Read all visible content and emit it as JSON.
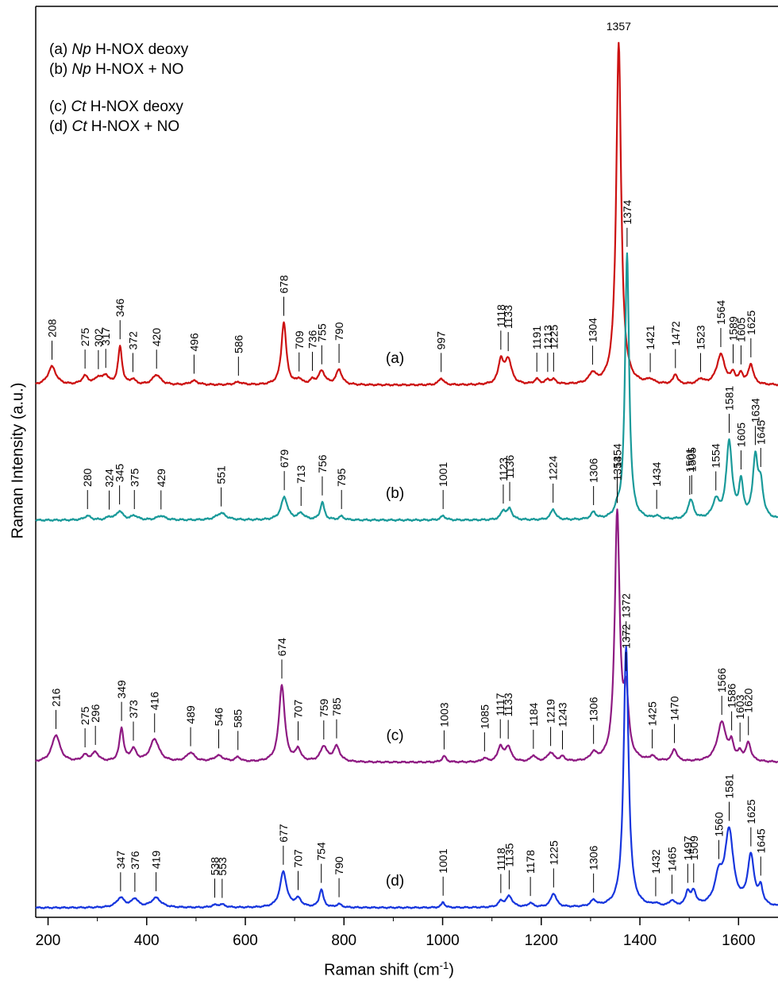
{
  "chart_data": {
    "type": "line",
    "xlabel": "Raman shift (cm",
    "xlabel_sup": "-1",
    "xlabel_end": ")",
    "ylabel": "Raman Intensity (a.u.)",
    "xlim": [
      175,
      1680
    ],
    "x_ticks": [
      200,
      400,
      600,
      800,
      1000,
      1200,
      1400,
      1600
    ],
    "legend": [
      {
        "id": "a",
        "italic": "Np",
        "rest": "H-NOX deoxy"
      },
      {
        "id": "b",
        "italic": "Np",
        "rest": "H-NOX + NO"
      },
      {
        "id": "c",
        "italic": "Ct",
        "rest": "H-NOX deoxy"
      },
      {
        "id": "d",
        "italic": "Ct",
        "rest": "H-NOX + NO"
      }
    ],
    "series": [
      {
        "name": "(a)",
        "color": "#cc1111",
        "baseline": 0.105,
        "label_x": 1000,
        "peaks": [
          [
            208,
            0.055,
            10
          ],
          [
            275,
            0.025,
            8
          ],
          [
            302,
            0.02,
            8
          ],
          [
            317,
            0.025,
            7
          ],
          [
            346,
            0.112,
            5
          ],
          [
            372,
            0.015,
            6
          ],
          [
            420,
            0.03,
            10
          ],
          [
            496,
            0.012,
            10
          ],
          [
            586,
            0.008,
            10
          ],
          [
            678,
            0.188,
            6
          ],
          [
            709,
            0.015,
            6
          ],
          [
            736,
            0.012,
            6
          ],
          [
            755,
            0.04,
            8
          ],
          [
            790,
            0.045,
            7
          ],
          [
            997,
            0.02,
            6
          ],
          [
            1118,
            0.07,
            6
          ],
          [
            1133,
            0.075,
            8
          ],
          [
            1191,
            0.015,
            6
          ],
          [
            1213,
            0.012,
            6
          ],
          [
            1225,
            0.013,
            6
          ],
          [
            1304,
            0.03,
            8
          ],
          [
            1357,
            1.025,
            6
          ],
          [
            1421,
            0.012,
            8
          ],
          [
            1472,
            0.03,
            5
          ],
          [
            1523,
            0.015,
            7
          ],
          [
            1564,
            0.09,
            10
          ],
          [
            1589,
            0.03,
            5
          ],
          [
            1605,
            0.03,
            5
          ],
          [
            1625,
            0.06,
            6
          ]
        ],
        "labels": [
          208,
          275,
          302,
          317,
          346,
          372,
          420,
          496,
          586,
          678,
          709,
          736,
          755,
          790,
          997,
          1118,
          1133,
          1191,
          1213,
          1225,
          1304,
          1357,
          1421,
          1472,
          1523,
          1564,
          1589,
          1605,
          1625
        ]
      },
      {
        "name": "(b)",
        "color": "#1a9a9a",
        "baseline": 0.13,
        "label_x": 1000,
        "peaks": [
          [
            280,
            0.012,
            8
          ],
          [
            324,
            0.008,
            6
          ],
          [
            345,
            0.025,
            8
          ],
          [
            375,
            0.012,
            8
          ],
          [
            429,
            0.012,
            10
          ],
          [
            551,
            0.02,
            12
          ],
          [
            679,
            0.065,
            8
          ],
          [
            713,
            0.018,
            8
          ],
          [
            756,
            0.05,
            5
          ],
          [
            795,
            0.01,
            6
          ],
          [
            1001,
            0.012,
            6
          ],
          [
            1123,
            0.025,
            6
          ],
          [
            1136,
            0.03,
            6
          ],
          [
            1224,
            0.03,
            6
          ],
          [
            1306,
            0.02,
            6
          ],
          [
            1354,
            0.02,
            6
          ],
          [
            1374,
            0.76,
            5
          ],
          [
            1434,
            0.008,
            6
          ],
          [
            1501,
            0.03,
            6
          ],
          [
            1505,
            0.03,
            6
          ],
          [
            1554,
            0.05,
            8
          ],
          [
            1581,
            0.22,
            7
          ],
          [
            1605,
            0.1,
            5
          ],
          [
            1634,
            0.17,
            6
          ],
          [
            1645,
            0.09,
            6
          ]
        ],
        "labels": [
          280,
          324,
          345,
          375,
          429,
          551,
          679,
          713,
          756,
          795,
          1001,
          1123,
          1136,
          1224,
          1306,
          1354,
          1374,
          1434,
          1501,
          1505,
          1554,
          1581,
          1605,
          1634,
          1645
        ]
      },
      {
        "name": "(c)",
        "color": "#8e1a82",
        "baseline": 0.14,
        "label_x": 1000,
        "peaks": [
          [
            216,
            0.09,
            10
          ],
          [
            275,
            0.02,
            8
          ],
          [
            296,
            0.03,
            8
          ],
          [
            349,
            0.11,
            5
          ],
          [
            373,
            0.04,
            7
          ],
          [
            416,
            0.075,
            11
          ],
          [
            489,
            0.03,
            10
          ],
          [
            546,
            0.02,
            12
          ],
          [
            585,
            0.015,
            6
          ],
          [
            674,
            0.255,
            7
          ],
          [
            707,
            0.04,
            6
          ],
          [
            759,
            0.05,
            8
          ],
          [
            785,
            0.05,
            8
          ],
          [
            1003,
            0.02,
            5
          ],
          [
            1085,
            0.012,
            6
          ],
          [
            1117,
            0.05,
            6
          ],
          [
            1133,
            0.05,
            7
          ],
          [
            1184,
            0.02,
            6
          ],
          [
            1219,
            0.03,
            8
          ],
          [
            1243,
            0.015,
            6
          ],
          [
            1306,
            0.025,
            7
          ],
          [
            1354,
            0.82,
            6
          ],
          [
            1372,
            0.2,
            6
          ],
          [
            1425,
            0.015,
            6
          ],
          [
            1470,
            0.04,
            6
          ],
          [
            1566,
            0.13,
            11
          ],
          [
            1586,
            0.05,
            5
          ],
          [
            1603,
            0.025,
            5
          ],
          [
            1620,
            0.06,
            6
          ]
        ],
        "labels": [
          216,
          275,
          296,
          349,
          373,
          416,
          489,
          546,
          585,
          674,
          707,
          759,
          785,
          1003,
          1085,
          1117,
          1133,
          1184,
          1219,
          1243,
          1306,
          1354,
          1372,
          1425,
          1470,
          1566,
          1586,
          1603,
          1620
        ]
      },
      {
        "name": "(d)",
        "color": "#1736dd",
        "baseline": 0.16,
        "label_x": 1000,
        "peaks": [
          [
            347,
            0.035,
            10
          ],
          [
            376,
            0.03,
            8
          ],
          [
            419,
            0.035,
            12
          ],
          [
            538,
            0.008,
            8
          ],
          [
            553,
            0.01,
            8
          ],
          [
            677,
            0.13,
            8
          ],
          [
            707,
            0.03,
            8
          ],
          [
            754,
            0.065,
            5
          ],
          [
            790,
            0.012,
            6
          ],
          [
            1001,
            0.02,
            4
          ],
          [
            1118,
            0.02,
            6
          ],
          [
            1135,
            0.04,
            8
          ],
          [
            1178,
            0.015,
            6
          ],
          [
            1225,
            0.05,
            7
          ],
          [
            1306,
            0.022,
            7
          ],
          [
            1372,
            0.95,
            6
          ],
          [
            1432,
            0.008,
            6
          ],
          [
            1465,
            0.02,
            6
          ],
          [
            1497,
            0.05,
            5
          ],
          [
            1509,
            0.05,
            6
          ],
          [
            1560,
            0.1,
            10
          ],
          [
            1581,
            0.27,
            10
          ],
          [
            1625,
            0.18,
            8
          ],
          [
            1645,
            0.06,
            5
          ]
        ],
        "labels": [
          347,
          376,
          419,
          538,
          553,
          677,
          707,
          754,
          790,
          1001,
          1118,
          1135,
          1178,
          1225,
          1306,
          1372,
          1432,
          1465,
          1497,
          1509,
          1560,
          1581,
          1625,
          1645
        ]
      }
    ]
  }
}
